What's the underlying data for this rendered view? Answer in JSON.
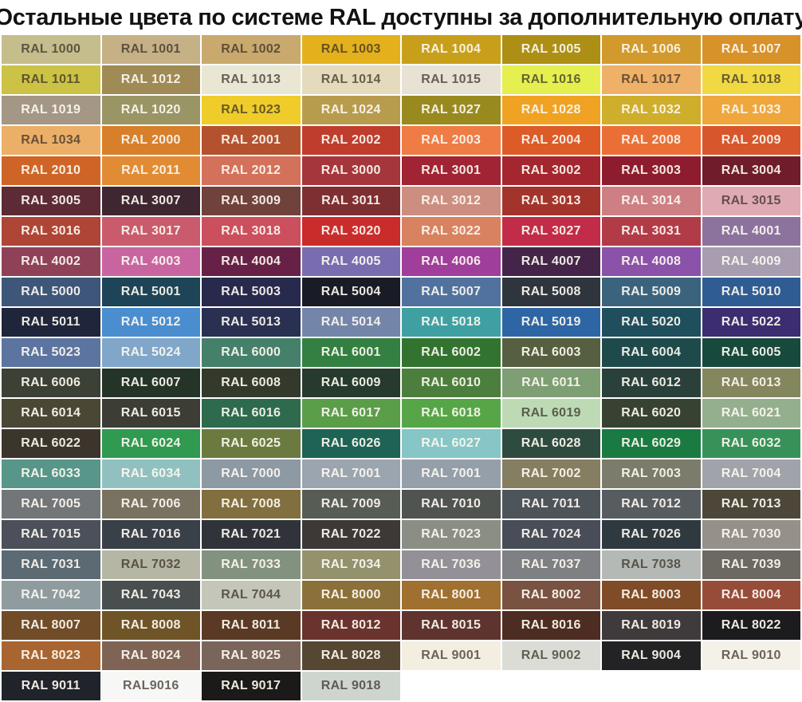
{
  "title": "Остальные цвета по системе RAL доступны за дополнительную оплату",
  "label_colors": {
    "dark": "rgba(51,45,36,0.72)",
    "light": "rgba(252,248,240,0.93)"
  },
  "chart_data": {
    "type": "table",
    "title": "Остальные цвета по системе RAL доступны за дополнительную оплату",
    "columns": 8,
    "cells": [
      {
        "code": "RAL 1000",
        "bg": "#C5BD8B",
        "label": "dark"
      },
      {
        "code": "RAL 1001",
        "bg": "#C6B186",
        "label": "dark"
      },
      {
        "code": "RAL 1002",
        "bg": "#C9A96D",
        "label": "dark"
      },
      {
        "code": "RAL 1003",
        "bg": "#E4B11D",
        "label": "dark"
      },
      {
        "code": "RAL 1004",
        "bg": "#C79F1A",
        "label": "light"
      },
      {
        "code": "RAL 1005",
        "bg": "#AC8F14",
        "label": "light"
      },
      {
        "code": "RAL 1006",
        "bg": "#D2992C",
        "label": "light"
      },
      {
        "code": "RAL 1007",
        "bg": "#D8922A",
        "label": "light"
      },
      {
        "code": "RAL 1011",
        "bg": "#CBC246",
        "label": "dark"
      },
      {
        "code": "RAL 1012",
        "bg": "#A08A55",
        "label": "light"
      },
      {
        "code": "RAL 1013",
        "bg": "#E9E6D4",
        "label": "dark"
      },
      {
        "code": "RAL 1014",
        "bg": "#E5DBBC",
        "label": "dark"
      },
      {
        "code": "RAL 1015",
        "bg": "#E7E2D3",
        "label": "dark"
      },
      {
        "code": "RAL 1016",
        "bg": "#E5EF4F",
        "label": "dark"
      },
      {
        "code": "RAL 1017",
        "bg": "#EFB067",
        "label": "dark"
      },
      {
        "code": "RAL 1018",
        "bg": "#F0D943",
        "label": "dark"
      },
      {
        "code": "RAL 1019",
        "bg": "#A49786",
        "label": "light"
      },
      {
        "code": "RAL 1020",
        "bg": "#9A9565",
        "label": "light"
      },
      {
        "code": "RAL 1023",
        "bg": "#EFCC2A",
        "label": "dark"
      },
      {
        "code": "RAL 1024",
        "bg": "#B89C4E",
        "label": "light"
      },
      {
        "code": "RAL 1027",
        "bg": "#998A20",
        "label": "light"
      },
      {
        "code": "RAL 1028",
        "bg": "#F0A322",
        "label": "light"
      },
      {
        "code": "RAL 1032",
        "bg": "#CFAE2C",
        "label": "light"
      },
      {
        "code": "RAL 1033",
        "bg": "#EFA73D",
        "label": "light"
      },
      {
        "code": "RAL 1034",
        "bg": "#EBAF68",
        "label": "dark"
      },
      {
        "code": "RAL 2000",
        "bg": "#D77F2B",
        "label": "light"
      },
      {
        "code": "RAL 2001",
        "bg": "#B4522F",
        "label": "light"
      },
      {
        "code": "RAL 2002",
        "bg": "#BF3D2D",
        "label": "light"
      },
      {
        "code": "RAL 2003",
        "bg": "#EE7C44",
        "label": "light"
      },
      {
        "code": "RAL 2004",
        "bg": "#DD5B27",
        "label": "light"
      },
      {
        "code": "RAL 2008",
        "bg": "#EA6F36",
        "label": "light"
      },
      {
        "code": "RAL 2009",
        "bg": "#D8562B",
        "label": "light"
      },
      {
        "code": "RAL 2010",
        "bg": "#CE6527",
        "label": "light"
      },
      {
        "code": "RAL 2011",
        "bg": "#E18C34",
        "label": "light"
      },
      {
        "code": "RAL 2012",
        "bg": "#D3715B",
        "label": "light"
      },
      {
        "code": "RAL 3000",
        "bg": "#A5363C",
        "label": "light"
      },
      {
        "code": "RAL 3001",
        "bg": "#A02433",
        "label": "light"
      },
      {
        "code": "RAL 3002",
        "bg": "#A4262F",
        "label": "light"
      },
      {
        "code": "RAL 3003",
        "bg": "#8D1D2E",
        "label": "light"
      },
      {
        "code": "RAL 3004",
        "bg": "#6F1D2B",
        "label": "light"
      },
      {
        "code": "RAL 3005",
        "bg": "#5C2B36",
        "label": "light"
      },
      {
        "code": "RAL 3007",
        "bg": "#3E2731",
        "label": "light"
      },
      {
        "code": "RAL 3009",
        "bg": "#6F423B",
        "label": "light"
      },
      {
        "code": "RAL 3011",
        "bg": "#7E2F32",
        "label": "light"
      },
      {
        "code": "RAL 3012",
        "bg": "#CB8E80",
        "label": "light"
      },
      {
        "code": "RAL 3013",
        "bg": "#A3342B",
        "label": "light"
      },
      {
        "code": "RAL 3014",
        "bg": "#CD7F84",
        "label": "light"
      },
      {
        "code": "RAL 3015",
        "bg": "#E0AAB4",
        "label": "dark"
      },
      {
        "code": "RAL 3016",
        "bg": "#AE4537",
        "label": "light"
      },
      {
        "code": "RAL 3017",
        "bg": "#C95B6C",
        "label": "light"
      },
      {
        "code": "RAL 3018",
        "bg": "#CC4F5D",
        "label": "light"
      },
      {
        "code": "RAL 3020",
        "bg": "#CA2C2C",
        "label": "light"
      },
      {
        "code": "RAL 3022",
        "bg": "#D8825F",
        "label": "light"
      },
      {
        "code": "RAL 3027",
        "bg": "#C22C48",
        "label": "light"
      },
      {
        "code": "RAL 3031",
        "bg": "#B23B48",
        "label": "light"
      },
      {
        "code": "RAL 4001",
        "bg": "#8B739E",
        "label": "light"
      },
      {
        "code": "RAL 4002",
        "bg": "#8F4257",
        "label": "light"
      },
      {
        "code": "RAL 4003",
        "bg": "#C865A0",
        "label": "light"
      },
      {
        "code": "RAL 4004",
        "bg": "#672146",
        "label": "light"
      },
      {
        "code": "RAL 4005",
        "bg": "#7A6CB1",
        "label": "light"
      },
      {
        "code": "RAL 4006",
        "bg": "#A03E9C",
        "label": "light"
      },
      {
        "code": "RAL 4007",
        "bg": "#442549",
        "label": "light"
      },
      {
        "code": "RAL 4008",
        "bg": "#8A52A8",
        "label": "light"
      },
      {
        "code": "RAL 4009",
        "bg": "#A79CB0",
        "label": "light"
      },
      {
        "code": "RAL 5000",
        "bg": "#3E5679",
        "label": "light"
      },
      {
        "code": "RAL 5001",
        "bg": "#1E4458",
        "label": "light"
      },
      {
        "code": "RAL 5003",
        "bg": "#272A4D",
        "label": "light"
      },
      {
        "code": "RAL 5004",
        "bg": "#191C26",
        "label": "light"
      },
      {
        "code": "RAL 5007",
        "bg": "#51729E",
        "label": "light"
      },
      {
        "code": "RAL 5008",
        "bg": "#2E353D",
        "label": "light"
      },
      {
        "code": "RAL 5009",
        "bg": "#3C637E",
        "label": "light"
      },
      {
        "code": "RAL 5010",
        "bg": "#2F5C93",
        "label": "light"
      },
      {
        "code": "RAL 5011",
        "bg": "#1F253A",
        "label": "light"
      },
      {
        "code": "RAL 5012",
        "bg": "#4A8ED0",
        "label": "light"
      },
      {
        "code": "RAL 5013",
        "bg": "#2A3051",
        "label": "light"
      },
      {
        "code": "RAL 5014",
        "bg": "#7386A9",
        "label": "light"
      },
      {
        "code": "RAL 5018",
        "bg": "#3FA0A3",
        "label": "light"
      },
      {
        "code": "RAL 5019",
        "bg": "#2E66A5",
        "label": "light"
      },
      {
        "code": "RAL 5020",
        "bg": "#1F4E5D",
        "label": "light"
      },
      {
        "code": "RAL 5022",
        "bg": "#3B2D70",
        "label": "light"
      },
      {
        "code": "RAL 5023",
        "bg": "#5C74A0",
        "label": "light"
      },
      {
        "code": "RAL 5024",
        "bg": "#80A7CA",
        "label": "light"
      },
      {
        "code": "RAL 6000",
        "bg": "#45806A",
        "label": "light"
      },
      {
        "code": "RAL 6001",
        "bg": "#338042",
        "label": "light"
      },
      {
        "code": "RAL 6002",
        "bg": "#337330",
        "label": "light"
      },
      {
        "code": "RAL 6003",
        "bg": "#565F40",
        "label": "light"
      },
      {
        "code": "RAL 6004",
        "bg": "#1E4A4B",
        "label": "light"
      },
      {
        "code": "RAL 6005",
        "bg": "#17493C",
        "label": "light"
      },
      {
        "code": "RAL 6006",
        "bg": "#3B4134",
        "label": "light"
      },
      {
        "code": "RAL 6007",
        "bg": "#243527",
        "label": "light"
      },
      {
        "code": "RAL 6008",
        "bg": "#33392B",
        "label": "light"
      },
      {
        "code": "RAL 6009",
        "bg": "#273A2E",
        "label": "light"
      },
      {
        "code": "RAL 6010",
        "bg": "#4C7F3D",
        "label": "light"
      },
      {
        "code": "RAL 6011",
        "bg": "#7E9E73",
        "label": "light"
      },
      {
        "code": "RAL 6012",
        "bg": "#2A403B",
        "label": "light"
      },
      {
        "code": "RAL 6013",
        "bg": "#84865E",
        "label": "light"
      },
      {
        "code": "RAL 6014",
        "bg": "#4B4735",
        "label": "light"
      },
      {
        "code": "RAL 6015",
        "bg": "#3C3D35",
        "label": "light"
      },
      {
        "code": "RAL 6016",
        "bg": "#2D6B4C",
        "label": "light"
      },
      {
        "code": "RAL 6017",
        "bg": "#5A9E4A",
        "label": "light"
      },
      {
        "code": "RAL 6018",
        "bg": "#56A647",
        "label": "light"
      },
      {
        "code": "RAL 6019",
        "bg": "#BDDAB5",
        "label": "dark"
      },
      {
        "code": "RAL 6020",
        "bg": "#384233",
        "label": "light"
      },
      {
        "code": "RAL 6021",
        "bg": "#94AF8D",
        "label": "light"
      },
      {
        "code": "RAL 6022",
        "bg": "#3C352B",
        "label": "light"
      },
      {
        "code": "RAL 6024",
        "bg": "#2F9A50",
        "label": "light"
      },
      {
        "code": "RAL 6025",
        "bg": "#6B7B40",
        "label": "light"
      },
      {
        "code": "RAL 6026",
        "bg": "#1E6355",
        "label": "light"
      },
      {
        "code": "RAL 6027",
        "bg": "#86C6C6",
        "label": "light"
      },
      {
        "code": "RAL 6028",
        "bg": "#2E4B3F",
        "label": "light"
      },
      {
        "code": "RAL 6029",
        "bg": "#197B41",
        "label": "light"
      },
      {
        "code": "RAL 6032",
        "bg": "#37925A",
        "label": "light"
      },
      {
        "code": "RAL 6033",
        "bg": "#579689",
        "label": "light"
      },
      {
        "code": "RAL 6034",
        "bg": "#90C1C0",
        "label": "light"
      },
      {
        "code": "RAL 7000",
        "bg": "#8D99A3",
        "label": "light"
      },
      {
        "code": "RAL 7001",
        "bg": "#9BA5AF",
        "label": "light"
      },
      {
        "code": "RAL 7001",
        "bg": "#949FAA",
        "label": "light"
      },
      {
        "code": "RAL 7002",
        "bg": "#867E60",
        "label": "light"
      },
      {
        "code": "RAL 7003",
        "bg": "#7B7C6B",
        "label": "light"
      },
      {
        "code": "RAL 7004",
        "bg": "#A0A3AA",
        "label": "light"
      },
      {
        "code": "RAL 7005",
        "bg": "#737678",
        "label": "light"
      },
      {
        "code": "RAL 7006",
        "bg": "#7A7260",
        "label": "light"
      },
      {
        "code": "RAL 7008",
        "bg": "#826F3F",
        "label": "light"
      },
      {
        "code": "RAL 7009",
        "bg": "#575D55",
        "label": "light"
      },
      {
        "code": "RAL 7010",
        "bg": "#505451",
        "label": "light"
      },
      {
        "code": "RAL 7011",
        "bg": "#4D555A",
        "label": "light"
      },
      {
        "code": "RAL 7012",
        "bg": "#575C61",
        "label": "light"
      },
      {
        "code": "RAL 7013",
        "bg": "#4D473A",
        "label": "light"
      },
      {
        "code": "RAL 7015",
        "bg": "#4B505A",
        "label": "light"
      },
      {
        "code": "RAL 7016",
        "bg": "#394048",
        "label": "light"
      },
      {
        "code": "RAL 7021",
        "bg": "#30343A",
        "label": "light"
      },
      {
        "code": "RAL 7022",
        "bg": "#3C3936",
        "label": "light"
      },
      {
        "code": "RAL 7023",
        "bg": "#8B8E85",
        "label": "light"
      },
      {
        "code": "RAL 7024",
        "bg": "#484D58",
        "label": "light"
      },
      {
        "code": "RAL 7026",
        "bg": "#2F3A40",
        "label": "light"
      },
      {
        "code": "RAL 7030",
        "bg": "#95918A",
        "label": "light"
      },
      {
        "code": "RAL 7031",
        "bg": "#5B6A73",
        "label": "light"
      },
      {
        "code": "RAL 7032",
        "bg": "#B6B6A4",
        "label": "dark"
      },
      {
        "code": "RAL 7033",
        "bg": "#83927F",
        "label": "light"
      },
      {
        "code": "RAL 7034",
        "bg": "#94916D",
        "label": "light"
      },
      {
        "code": "RAL 7036",
        "bg": "#939197",
        "label": "light"
      },
      {
        "code": "RAL 7037",
        "bg": "#7E8083",
        "label": "light"
      },
      {
        "code": "RAL 7038",
        "bg": "#B5B9B5",
        "label": "dark"
      },
      {
        "code": "RAL 7039",
        "bg": "#6C6963",
        "label": "light"
      },
      {
        "code": "RAL 7042",
        "bg": "#8F9C9F",
        "label": "light"
      },
      {
        "code": "RAL 7043",
        "bg": "#494F4F",
        "label": "light"
      },
      {
        "code": "RAL 7044",
        "bg": "#C4C6B9",
        "label": "dark"
      },
      {
        "code": "RAL 8000",
        "bg": "#8B7039",
        "label": "light"
      },
      {
        "code": "RAL 8001",
        "bg": "#9F7030",
        "label": "light"
      },
      {
        "code": "RAL 8002",
        "bg": "#795242",
        "label": "light"
      },
      {
        "code": "RAL 8003",
        "bg": "#7F4C27",
        "label": "light"
      },
      {
        "code": "RAL 8004",
        "bg": "#974C3A",
        "label": "light"
      },
      {
        "code": "RAL 8007",
        "bg": "#704C28",
        "label": "light"
      },
      {
        "code": "RAL 8008",
        "bg": "#6F5427",
        "label": "light"
      },
      {
        "code": "RAL 8011",
        "bg": "#5A3A24",
        "label": "light"
      },
      {
        "code": "RAL 8012",
        "bg": "#6A332D",
        "label": "light"
      },
      {
        "code": "RAL 8015",
        "bg": "#5F342E",
        "label": "light"
      },
      {
        "code": "RAL 8016",
        "bg": "#4D2C21",
        "label": "light"
      },
      {
        "code": "RAL 8019",
        "bg": "#3F3A3B",
        "label": "light"
      },
      {
        "code": "RAL 8022",
        "bg": "#1C1B1D",
        "label": "light"
      },
      {
        "code": "RAL 8023",
        "bg": "#A96531",
        "label": "light"
      },
      {
        "code": "RAL 8024",
        "bg": "#7F6355",
        "label": "light"
      },
      {
        "code": "RAL 8025",
        "bg": "#7A655B",
        "label": "light"
      },
      {
        "code": "RAL 8028",
        "bg": "#564733",
        "label": "light"
      },
      {
        "code": "RAL 9001",
        "bg": "#F3EEE0",
        "label": "dark"
      },
      {
        "code": "RAL 9002",
        "bg": "#DADCD5",
        "label": "dark"
      },
      {
        "code": "RAL 9004",
        "bg": "#232325",
        "label": "light"
      },
      {
        "code": "RAL 9010",
        "bg": "#F4F1E8",
        "label": "dark"
      },
      {
        "code": "RAL 9011",
        "bg": "#20242A",
        "label": "light"
      },
      {
        "code": "RAL9016",
        "bg": "#F7F7F5",
        "label": "dark"
      },
      {
        "code": "RAL 9017",
        "bg": "#1B1A18",
        "label": "light"
      },
      {
        "code": "RAL 9018",
        "bg": "#CED5CF",
        "label": "dark"
      }
    ]
  }
}
